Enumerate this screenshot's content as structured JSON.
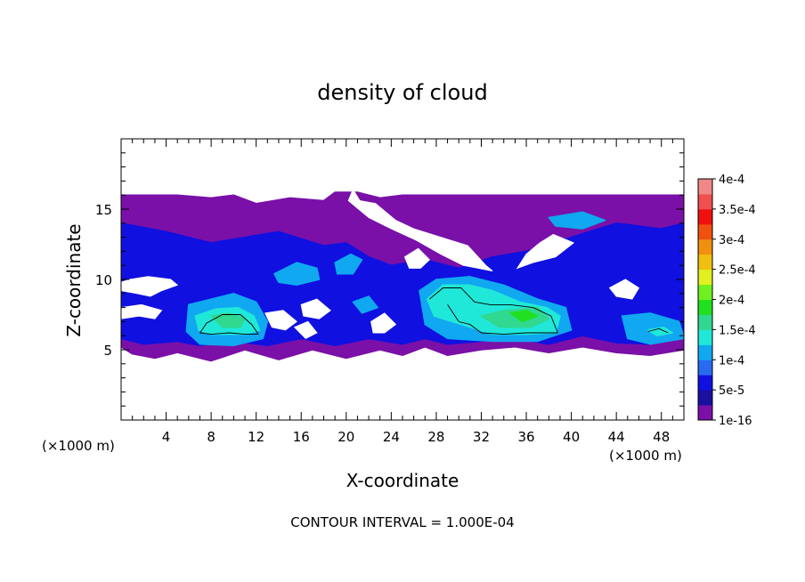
{
  "chart_data": {
    "type": "heatmap",
    "title": "density of cloud",
    "xlabel": "X-coordinate",
    "ylabel": "Z-coordinate",
    "x_unit_left": "(×1000 m)",
    "x_unit_right": "(×1000 m)",
    "xlim": [
      0,
      50
    ],
    "ylim": [
      0,
      20
    ],
    "x_ticks": [
      4,
      8,
      12,
      16,
      20,
      24,
      28,
      32,
      36,
      40,
      44,
      48
    ],
    "y_ticks": [
      5,
      10,
      15
    ],
    "footer": "CONTOUR INTERVAL = 1.000E-04",
    "colorbar": {
      "labels": [
        "1e-16",
        "5e-5",
        "1e-4",
        "1.5e-4",
        "2e-4",
        "2.5e-4",
        "3e-4",
        "3.5e-4",
        "4e-4"
      ],
      "colors": [
        "#7a10a8",
        "#1a10a0",
        "#1010e0",
        "#2a6af0",
        "#10a8f0",
        "#20e8d8",
        "#30d890",
        "#20e020",
        "#70f020",
        "#e0f020",
        "#f0c010",
        "#f09010",
        "#f05010",
        "#f01010",
        "#f05050",
        "#f08888"
      ]
    },
    "regions": [
      {
        "level": 1,
        "poly": [
          [
            0,
            16
          ],
          [
            5,
            16
          ],
          [
            8,
            15.8
          ],
          [
            10,
            16
          ],
          [
            12,
            15.4
          ],
          [
            15,
            15.8
          ],
          [
            18,
            15.6
          ],
          [
            19,
            16.2
          ],
          [
            21,
            16.2
          ],
          [
            23,
            15.8
          ],
          [
            25,
            16
          ],
          [
            29,
            16
          ],
          [
            33,
            16
          ],
          [
            38,
            16
          ],
          [
            42,
            16
          ],
          [
            46,
            16
          ],
          [
            50,
            16
          ],
          [
            50,
            9
          ],
          [
            49,
            8.2
          ],
          [
            50,
            7.5
          ],
          [
            50,
            5
          ],
          [
            47,
            4.6
          ],
          [
            44,
            4.8
          ],
          [
            41,
            5.2
          ],
          [
            38,
            4.8
          ],
          [
            35,
            5.2
          ],
          [
            32,
            5
          ],
          [
            29,
            4.6
          ],
          [
            27,
            5.2
          ],
          [
            25,
            4.6
          ],
          [
            23,
            5
          ],
          [
            20,
            4.4
          ],
          [
            17,
            5
          ],
          [
            14,
            4.3
          ],
          [
            11,
            5
          ],
          [
            8,
            4.2
          ],
          [
            5,
            4.8
          ],
          [
            3,
            4.4
          ],
          [
            1,
            4.7
          ],
          [
            0,
            5.2
          ]
        ]
      },
      {
        "level": 2,
        "poly": [
          [
            0,
            14
          ],
          [
            4,
            13.4
          ],
          [
            8,
            12.6
          ],
          [
            11,
            13
          ],
          [
            14,
            13.4
          ],
          [
            18,
            12.4
          ],
          [
            20,
            12.6
          ],
          [
            22,
            11.6
          ],
          [
            24,
            11
          ],
          [
            27,
            11.4
          ],
          [
            30,
            10.8
          ],
          [
            33,
            11.6
          ],
          [
            36,
            12
          ],
          [
            40,
            13
          ],
          [
            44,
            14
          ],
          [
            48,
            13.6
          ],
          [
            50,
            14
          ],
          [
            50,
            6.5
          ],
          [
            47,
            5.4
          ],
          [
            44,
            5.5
          ],
          [
            41,
            6
          ],
          [
            38,
            5.4
          ],
          [
            35,
            5.8
          ],
          [
            32,
            5.6
          ],
          [
            29,
            5.4
          ],
          [
            27,
            5.8
          ],
          [
            25,
            5.4
          ],
          [
            22,
            5.8
          ],
          [
            19,
            5.3
          ],
          [
            16,
            5.8
          ],
          [
            13,
            5.3
          ],
          [
            10,
            5.6
          ],
          [
            7,
            5.3
          ],
          [
            5,
            5.6
          ],
          [
            2,
            5.4
          ],
          [
            0,
            5.8
          ]
        ]
      },
      {
        "level": 3,
        "poly": [
          [
            6,
            8.2
          ],
          [
            8,
            8.6
          ],
          [
            10,
            9
          ],
          [
            12,
            8.4
          ],
          [
            13,
            7
          ],
          [
            12.6,
            5.8
          ],
          [
            10,
            5.3
          ],
          [
            7,
            5.4
          ],
          [
            5.8,
            6.3
          ]
        ]
      },
      {
        "level": 3,
        "poly": [
          [
            26.5,
            9.2
          ],
          [
            28,
            10
          ],
          [
            31,
            10.2
          ],
          [
            34,
            9.6
          ],
          [
            37,
            8.6
          ],
          [
            39.5,
            8
          ],
          [
            40,
            6.4
          ],
          [
            37,
            5.6
          ],
          [
            33,
            5.6
          ],
          [
            29,
            5.8
          ],
          [
            27,
            6.8
          ]
        ]
      },
      {
        "level": 3,
        "poly": [
          [
            44.5,
            7.4
          ],
          [
            47,
            7.6
          ],
          [
            49.6,
            7
          ],
          [
            50,
            5.8
          ],
          [
            47,
            5.4
          ],
          [
            45,
            5.8
          ]
        ]
      },
      {
        "level": 3,
        "poly": [
          [
            13.6,
            10.4
          ],
          [
            15.6,
            11.2
          ],
          [
            17.4,
            10.8
          ],
          [
            17.6,
            10
          ],
          [
            15.6,
            9.6
          ],
          [
            14,
            9.8
          ]
        ]
      },
      {
        "level": 3,
        "poly": [
          [
            19,
            11.2
          ],
          [
            20.4,
            11.8
          ],
          [
            21.4,
            11.4
          ],
          [
            20.6,
            10.4
          ],
          [
            19.2,
            10.4
          ]
        ]
      },
      {
        "level": 3,
        "poly": [
          [
            20.6,
            8.4
          ],
          [
            22,
            8.8
          ],
          [
            22.8,
            8
          ],
          [
            21.4,
            7.6
          ]
        ]
      },
      {
        "level": 3,
        "poly": [
          [
            38,
            14.4
          ],
          [
            41,
            14.8
          ],
          [
            43,
            14.2
          ],
          [
            41,
            13.6
          ],
          [
            38.6,
            13.8
          ]
        ]
      },
      {
        "level": 4,
        "poly": [
          [
            6.6,
            7.4
          ],
          [
            8.4,
            7.9
          ],
          [
            10.4,
            8
          ],
          [
            11.8,
            7.4
          ],
          [
            12.3,
            6.4
          ],
          [
            11,
            6.1
          ],
          [
            8,
            6.1
          ],
          [
            6.9,
            6.4
          ]
        ]
      },
      {
        "level": 4,
        "poly": [
          [
            27.2,
            8.6
          ],
          [
            28.6,
            9.6
          ],
          [
            31,
            9.6
          ],
          [
            33,
            9.2
          ],
          [
            35.4,
            8.4
          ],
          [
            37.8,
            8
          ],
          [
            39,
            7.4
          ],
          [
            38.6,
            6.2
          ],
          [
            36,
            6.1
          ],
          [
            33,
            6.1
          ],
          [
            31,
            6.6
          ],
          [
            29.4,
            7
          ],
          [
            27.8,
            7.4
          ]
        ]
      },
      {
        "level": 4,
        "poly": [
          [
            46.8,
            6.4
          ],
          [
            48.2,
            6.6
          ],
          [
            49,
            6.2
          ],
          [
            47.6,
            6
          ]
        ]
      },
      {
        "level": 5,
        "poly": [
          [
            8,
            7.4
          ],
          [
            9.6,
            7.6
          ],
          [
            11,
            7.2
          ],
          [
            10.6,
            6.6
          ],
          [
            9,
            6.6
          ]
        ]
      },
      {
        "level": 5,
        "poly": [
          [
            32,
            7.4
          ],
          [
            34,
            7.8
          ],
          [
            37,
            8
          ],
          [
            38,
            7.2
          ],
          [
            36.4,
            6.6
          ],
          [
            33.6,
            6.6
          ]
        ]
      },
      {
        "level": 6,
        "poly": [
          [
            34.6,
            7.6
          ],
          [
            36,
            7.8
          ],
          [
            37,
            7.4
          ],
          [
            35.6,
            7
          ]
        ]
      }
    ],
    "holes": [
      [
        [
          0,
          9.2
        ],
        [
          1.4,
          9
        ],
        [
          2.6,
          8.8
        ],
        [
          3.6,
          9.2
        ],
        [
          5,
          9.6
        ],
        [
          4.4,
          10
        ],
        [
          2.4,
          10.2
        ],
        [
          0.8,
          10
        ],
        [
          0,
          9.8
        ]
      ],
      [
        [
          20.6,
          16.4
        ],
        [
          21.2,
          15.6
        ],
        [
          22.6,
          15.4
        ],
        [
          24.4,
          14.2
        ],
        [
          26,
          13.6
        ],
        [
          28.4,
          13
        ],
        [
          30.8,
          12.4
        ],
        [
          32.4,
          11
        ],
        [
          33,
          10.6
        ],
        [
          30.4,
          11
        ],
        [
          28.4,
          11.8
        ],
        [
          26.2,
          12.8
        ],
        [
          24,
          13.6
        ],
        [
          22,
          14.4
        ],
        [
          20.2,
          15.6
        ]
      ],
      [
        [
          37.2,
          12.6
        ],
        [
          38.4,
          13.2
        ],
        [
          40.2,
          12.6
        ],
        [
          38.6,
          11.6
        ],
        [
          36.6,
          11.2
        ],
        [
          35.2,
          10.8
        ],
        [
          36,
          11.8
        ]
      ],
      [
        [
          0,
          8
        ],
        [
          1.8,
          8.2
        ],
        [
          3.6,
          7.8
        ],
        [
          3,
          7.2
        ],
        [
          1.6,
          7.4
        ],
        [
          0,
          7.2
        ]
      ],
      [
        [
          12.8,
          7.6
        ],
        [
          14.4,
          7.8
        ],
        [
          15.6,
          7
        ],
        [
          14.6,
          6.4
        ],
        [
          13.4,
          6.6
        ]
      ],
      [
        [
          16,
          8.2
        ],
        [
          17.4,
          8.6
        ],
        [
          18.6,
          7.8
        ],
        [
          17.6,
          7.2
        ],
        [
          16.2,
          7.4
        ]
      ],
      [
        [
          22.2,
          7
        ],
        [
          23.4,
          7.6
        ],
        [
          24.4,
          6.8
        ],
        [
          23.4,
          6.2
        ],
        [
          22.4,
          6.2
        ]
      ],
      [
        [
          43.4,
          9.4
        ],
        [
          44.8,
          10
        ],
        [
          46,
          9.4
        ],
        [
          45.4,
          8.6
        ],
        [
          44,
          8.8
        ]
      ],
      [
        [
          25.2,
          11.6
        ],
        [
          26.4,
          12.2
        ],
        [
          27.4,
          11.4
        ],
        [
          26.6,
          10.8
        ],
        [
          25.6,
          10.8
        ]
      ],
      [
        [
          15.4,
          6.6
        ],
        [
          16.6,
          7
        ],
        [
          17.4,
          6.2
        ],
        [
          16.4,
          5.8
        ]
      ]
    ],
    "contours": [
      [
        [
          7,
          6.2
        ],
        [
          7.6,
          6.9
        ],
        [
          9,
          7.5
        ],
        [
          10.6,
          7.5
        ],
        [
          11.6,
          6.8
        ],
        [
          12.2,
          6.1
        ]
      ],
      [
        [
          7,
          6.2
        ],
        [
          8,
          6.1
        ],
        [
          9.6,
          6.2
        ],
        [
          11,
          6.1
        ],
        [
          12.2,
          6.1
        ]
      ],
      [
        [
          27.4,
          8.6
        ],
        [
          28.6,
          9.4
        ],
        [
          30.2,
          9.4
        ],
        [
          31.4,
          8.4
        ],
        [
          32.8,
          8.2
        ],
        [
          34.6,
          8.2
        ],
        [
          36.6,
          8
        ],
        [
          38.2,
          7.4
        ],
        [
          38.8,
          6.2
        ]
      ],
      [
        [
          29,
          8.2
        ],
        [
          30,
          7
        ],
        [
          31,
          6.8
        ],
        [
          32,
          6.2
        ],
        [
          34,
          6.1
        ],
        [
          36,
          6.2
        ],
        [
          38.8,
          6.2
        ]
      ],
      [
        [
          46.8,
          6.3
        ],
        [
          47.8,
          6.5
        ],
        [
          48.6,
          6.2
        ]
      ]
    ]
  }
}
